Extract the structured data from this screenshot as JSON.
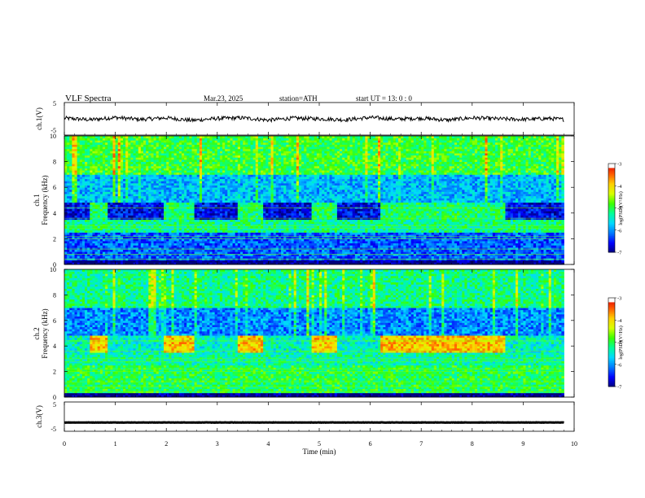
{
  "header": {
    "title": "VLF  Spectra",
    "date": "Mar.23, 2025",
    "station": "station=ATH",
    "start": "start  UT  =    13: 0   : 0"
  },
  "colors": {
    "spectrogram_scale": [
      "#00007a",
      "#0000ff",
      "#0078ff",
      "#00d8ff",
      "#00ff9a",
      "#3cff00",
      "#d8ff00",
      "#ffd000",
      "#ff5a00",
      "#e00000",
      "#ffffff"
    ],
    "waveform": "#000000",
    "frame": "#000000",
    "background": "#ffffff"
  },
  "chart_data": [
    {
      "type": "line",
      "panel": "ch1-waveform",
      "ylabel": "ch.1(V)",
      "ylim": [
        -5,
        5
      ],
      "yticks": [
        "5",
        "-5"
      ],
      "x": [
        0.0,
        0.5,
        1.0,
        1.5,
        2.0,
        2.5,
        3.0,
        3.5,
        4.0,
        4.5,
        5.0,
        5.5,
        6.0,
        6.5,
        7.0,
        7.5,
        8.0,
        8.5,
        9.0,
        9.5,
        9.8
      ],
      "y": [
        0.2,
        -0.3,
        0.4,
        -0.2,
        0.3,
        -0.5,
        0.1,
        0.3,
        -0.4,
        0.2,
        0.0,
        -0.3,
        0.4,
        -0.1,
        0.2,
        -0.4,
        0.3,
        0.0,
        -0.2,
        0.1,
        -0.2
      ]
    },
    {
      "type": "heatmap",
      "panel": "ch1-spectrogram",
      "ylabel": [
        "ch.1",
        "Frequency  (kHz)"
      ],
      "ylim": [
        0,
        10
      ],
      "yticks": [
        "0",
        "2",
        "4",
        "6",
        "8",
        "10"
      ],
      "colorbar": {
        "label": "log(PSD)(V²/Hz)",
        "ticks": [
          "-3",
          "-4",
          "-5",
          "-6",
          "-7"
        ],
        "range": [
          -7,
          -3
        ]
      },
      "levels_per_frequency_band_kHz": [
        {
          "band": [
            0,
            0.3
          ],
          "level": -7.0
        },
        {
          "band": [
            0.3,
            2.4
          ],
          "level": -6.2
        },
        {
          "band": [
            2.4,
            3.4
          ],
          "level": -5.2
        },
        {
          "band": [
            3.4,
            4.8
          ],
          "level": -6.6
        },
        {
          "band": [
            4.8,
            7.0
          ],
          "level": -5.8
        },
        {
          "band": [
            7.0,
            10.0
          ],
          "level": -4.9
        }
      ],
      "transmitter_bursts_min": [
        [
          0.5,
          0.85
        ],
        [
          1.95,
          2.5
        ],
        [
          3.4,
          3.9
        ],
        [
          4.85,
          5.35
        ],
        [
          6.2,
          8.6
        ]
      ]
    },
    {
      "type": "heatmap",
      "panel": "ch2-spectrogram",
      "ylabel": [
        "ch.2",
        "Frequency  (kHz)"
      ],
      "ylim": [
        0,
        10
      ],
      "yticks": [
        "0",
        "2",
        "4",
        "6",
        "8",
        "10"
      ],
      "colorbar": {
        "label": "log(PSD)(V²/Hz)",
        "ticks": [
          "-3",
          "-4",
          "-5",
          "-6",
          "-7"
        ],
        "range": [
          -7,
          -3
        ]
      },
      "levels_per_frequency_band_kHz": [
        {
          "band": [
            0,
            0.3
          ],
          "level": -7.0
        },
        {
          "band": [
            0.3,
            2.4
          ],
          "level": -5.0
        },
        {
          "band": [
            2.4,
            3.4
          ],
          "level": -5.3
        },
        {
          "band": [
            3.4,
            4.8
          ],
          "level": -5.4
        },
        {
          "band": [
            4.8,
            7.0
          ],
          "level": -6.0
        },
        {
          "band": [
            7.0,
            10.0
          ],
          "level": -5.2
        }
      ],
      "transmitter_bursts_min": [
        [
          0.5,
          0.85
        ],
        [
          1.95,
          2.5
        ],
        [
          3.4,
          3.9
        ],
        [
          4.85,
          5.35
        ],
        [
          6.2,
          8.6
        ]
      ]
    },
    {
      "type": "line",
      "panel": "ch3-waveform",
      "ylabel": "ch.3(V)",
      "ylim": [
        -5,
        5
      ],
      "yticks": [
        "5",
        "-5"
      ],
      "x": [
        0.0,
        9.8
      ],
      "y": [
        -2.0,
        -2.0
      ]
    }
  ],
  "xaxis": {
    "label": "Time  (min)",
    "range": [
      0,
      10
    ],
    "ticks": [
      "0",
      "1",
      "2",
      "3",
      "4",
      "5",
      "6",
      "7",
      "8",
      "9",
      "10"
    ]
  }
}
